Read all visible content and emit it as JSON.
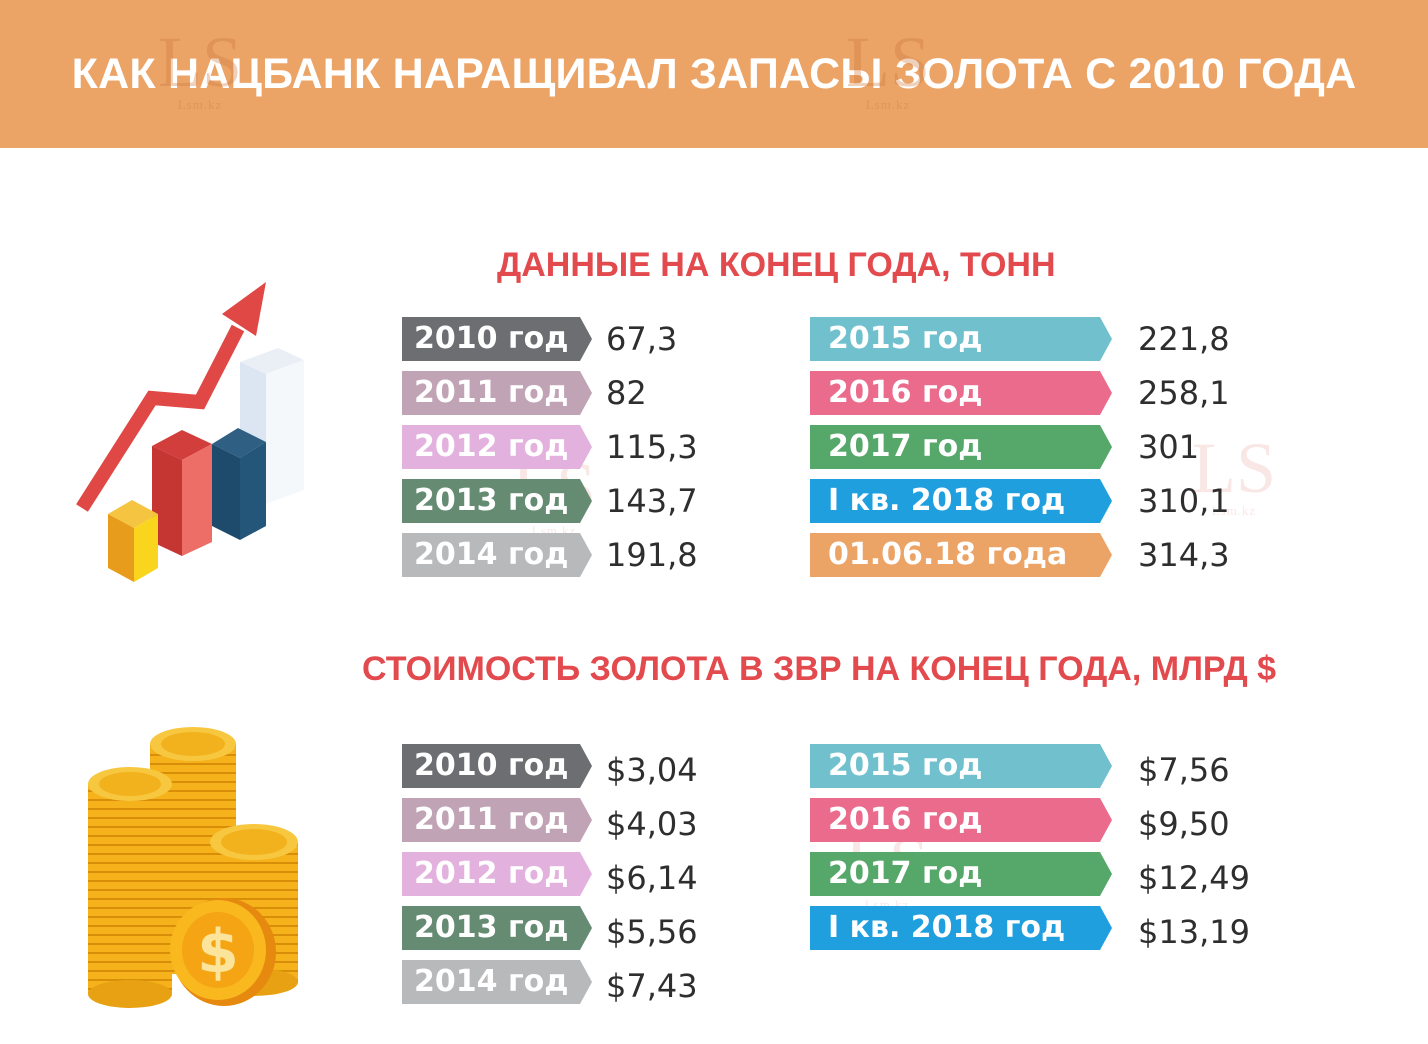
{
  "header": {
    "title": "КАК НАЦБАНК НАРАЩИВАЛ ЗАПАСЫ ЗОЛОТА С 2010 ГОДА"
  },
  "watermark": {
    "logo": "LS",
    "site": "Lsm.kz"
  },
  "sections": [
    {
      "title": "ДАННЫЕ НА КОНЕЦ ГОДА, ТОНН",
      "icon": "growth-chart-icon",
      "rows": [
        {
          "label": "2010 год",
          "value": "67,3",
          "color": "#6d6e71"
        },
        {
          "label": "2011 год",
          "value": "82",
          "color": "#c0a3b5"
        },
        {
          "label": "2012 год",
          "value": "115,3",
          "color": "#e3b1dd"
        },
        {
          "label": "2013 год",
          "value": "143,7",
          "color": "#658b72"
        },
        {
          "label": "2014 год",
          "value": "191,8",
          "color": "#b8b9bb"
        },
        {
          "label": "2015 год",
          "value": "221,8",
          "color": "#71c0cd"
        },
        {
          "label": "2016 год",
          "value": "258,1",
          "color": "#eb6b8d"
        },
        {
          "label": "2017 год",
          "value": "301",
          "color": "#56a86a"
        },
        {
          "label": "I кв. 2018 год",
          "value": "310,1",
          "color": "#1f9fde"
        },
        {
          "label": "01.06.18 года",
          "value": "314,3",
          "color": "#eca366"
        }
      ]
    },
    {
      "title": "СТОИМОСТЬ ЗОЛОТА В ЗВР НА КОНЕЦ ГОДА, МЛРД $",
      "icon": "gold-coins-icon",
      "rows": [
        {
          "label": "2010 год",
          "value": "$3,04",
          "color": "#6d6e71"
        },
        {
          "label": "2011 год",
          "value": "$4,03",
          "color": "#c0a3b5"
        },
        {
          "label": "2012 год",
          "value": "$6,14",
          "color": "#e3b1dd"
        },
        {
          "label": "2013 год",
          "value": "$5,56",
          "color": "#658b72"
        },
        {
          "label": "2014 год",
          "value": "$7,43",
          "color": "#b8b9bb"
        },
        {
          "label": "2015 год",
          "value": "$7,56",
          "color": "#71c0cd"
        },
        {
          "label": "2016 год",
          "value": "$9,50",
          "color": "#eb6b8d"
        },
        {
          "label": "2017 год",
          "value": "$12,49",
          "color": "#56a86a"
        },
        {
          "label": "I кв. 2018 год",
          "value": "$13,19",
          "color": "#1f9fde"
        }
      ]
    }
  ]
}
